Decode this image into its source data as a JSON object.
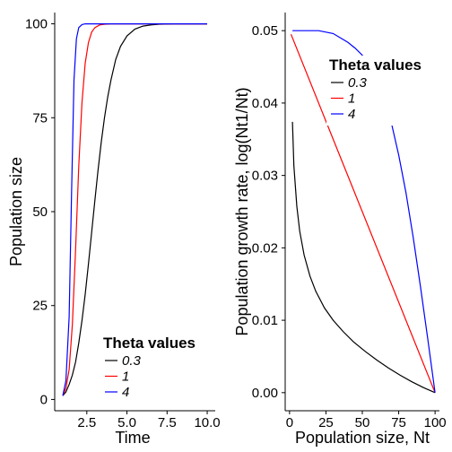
{
  "chart_data": [
    {
      "type": "line",
      "xlabel": "Time",
      "ylabel": "Population size",
      "xlim": [
        0.5,
        10.5
      ],
      "ylim": [
        -3,
        103
      ],
      "xticks": [
        2.5,
        5.0,
        7.5,
        10.0
      ],
      "xtick_labels": [
        "2.5",
        "5.0",
        "7.5",
        "10.0"
      ],
      "yticks": [
        0,
        25,
        50,
        75,
        100
      ],
      "ytick_labels": [
        "0",
        "25",
        "50",
        "75",
        "100"
      ],
      "grid": false,
      "legend": {
        "title": "Theta values",
        "placement": "bottom-right",
        "entries": [
          "0.3",
          "1",
          "4"
        ]
      },
      "series": [
        {
          "name": "0.3",
          "color": "#000000",
          "x": [
            1.0,
            1.2,
            1.4,
            1.6,
            1.8,
            2.0,
            2.2,
            2.4,
            2.6,
            2.8,
            3.0,
            3.2,
            3.4,
            3.6,
            3.8,
            4.0,
            4.3,
            4.6,
            5.0,
            5.5,
            6.0,
            6.5,
            7.0,
            8.0,
            9.0,
            10.0
          ],
          "y": [
            1,
            2,
            4,
            6.5,
            10,
            15,
            21,
            28,
            36,
            44.5,
            53,
            61,
            68.5,
            75,
            80.5,
            85,
            90.5,
            94,
            96.8,
            98.6,
            99.4,
            99.7,
            99.9,
            100,
            100,
            100
          ]
        },
        {
          "name": "1",
          "color": "#ff0000",
          "x": [
            1.0,
            1.2,
            1.4,
            1.6,
            1.8,
            2.0,
            2.2,
            2.4,
            2.6,
            2.8,
            3.0,
            3.3,
            3.6,
            4.0,
            5.0,
            10.0
          ],
          "y": [
            1,
            3,
            8,
            20,
            40,
            62,
            79,
            89.5,
            95,
            97.8,
            99,
            99.7,
            99.9,
            100,
            100,
            100
          ]
        },
        {
          "name": "4",
          "color": "#0000ff",
          "x": [
            1.0,
            1.2,
            1.4,
            1.55,
            1.7,
            1.85,
            2.0,
            2.2,
            2.4,
            2.7,
            3.0,
            10.0
          ],
          "y": [
            1,
            5,
            22,
            55,
            85,
            96,
            99,
            99.8,
            100,
            100,
            100,
            100
          ]
        }
      ]
    },
    {
      "type": "line",
      "xlabel": "Population size, Nt",
      "ylabel": "Population growth rate, log(Nt1/Nt)",
      "xlim": [
        -3,
        103
      ],
      "ylim": [
        -0.0025,
        0.0525
      ],
      "xticks": [
        0,
        25,
        50,
        75,
        100
      ],
      "xtick_labels": [
        "0",
        "25",
        "50",
        "75",
        "100"
      ],
      "yticks": [
        0.0,
        0.01,
        0.02,
        0.03,
        0.04,
        0.05
      ],
      "ytick_labels": [
        "0.00",
        "0.01",
        "0.02",
        "0.03",
        "0.04",
        "0.05"
      ],
      "grid": false,
      "legend": {
        "title": "Theta values",
        "placement": "top-right",
        "entries": [
          "0.3",
          "1",
          "4"
        ]
      },
      "series": [
        {
          "name": "0.3",
          "color": "#000000",
          "x": [
            2,
            3,
            5,
            7,
            10,
            14,
            18,
            24,
            30,
            37,
            44,
            52,
            60,
            68,
            76,
            84,
            92,
            100
          ],
          "y": [
            0.0374,
            0.0313,
            0.0257,
            0.0223,
            0.019,
            0.0161,
            0.014,
            0.0117,
            0.01,
            0.0084,
            0.007,
            0.0057,
            0.0045,
            0.0034,
            0.0024,
            0.0015,
            0.0007,
            0.0
          ]
        },
        {
          "name": "1",
          "color": "#ff0000",
          "x": [
            1,
            24,
            100
          ],
          "y": [
            0.0495,
            0.038,
            0.0
          ]
        },
        {
          "name": "4",
          "color": "#0000ff",
          "x": [
            2,
            10,
            20,
            30,
            40,
            45,
            50,
            70,
            75,
            80,
            85,
            90,
            95,
            100
          ],
          "y": [
            0.05,
            0.05,
            0.05,
            0.0496,
            0.0484,
            0.0476,
            0.0466,
            0.0372,
            0.0328,
            0.0276,
            0.0214,
            0.0146,
            0.0074,
            0.0
          ]
        }
      ]
    }
  ]
}
